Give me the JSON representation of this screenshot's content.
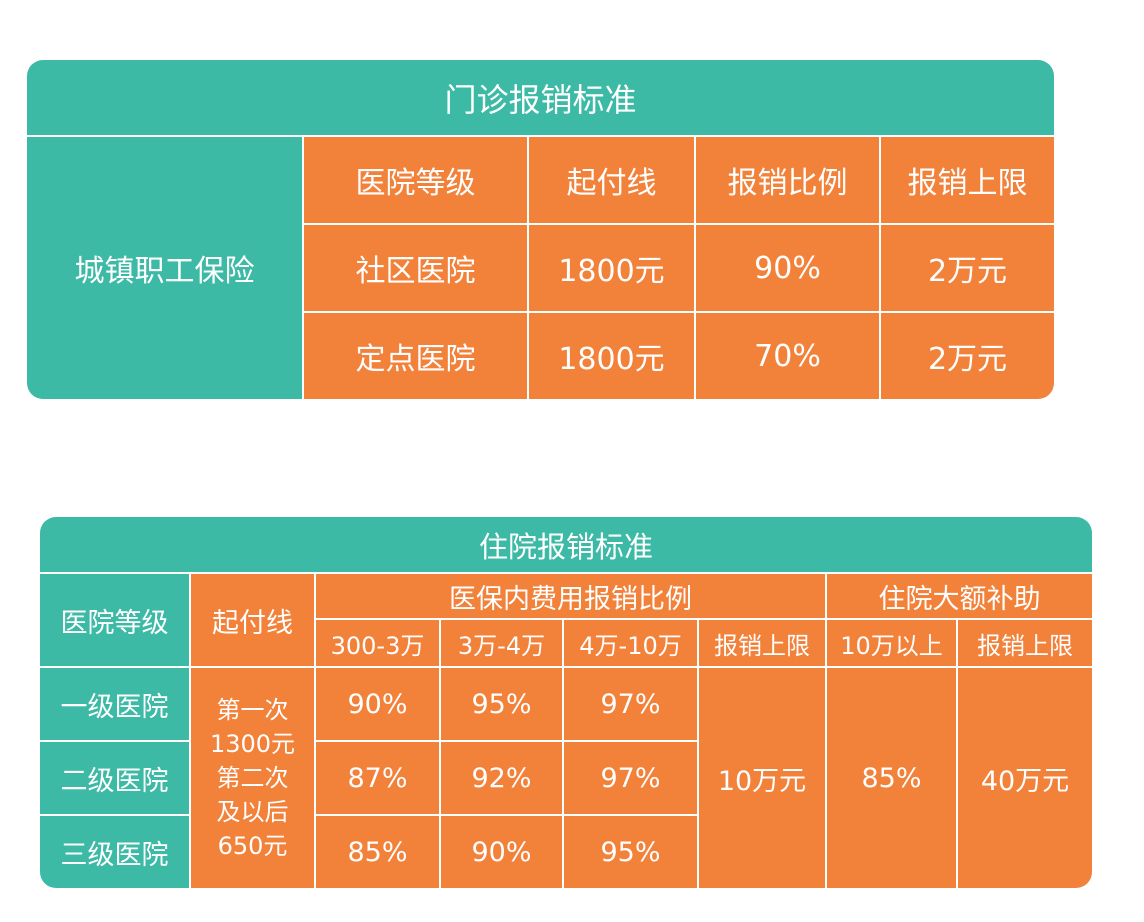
{
  "outpatient": {
    "title": "门诊报销标准",
    "group": "城镇职工保险",
    "headers": [
      "医院等级",
      "起付线",
      "报销比例",
      "报销上限"
    ],
    "rows": [
      [
        "社区医院",
        "1800元",
        "90%",
        "2万元"
      ],
      [
        "定点医院",
        "1800元",
        "70%",
        "2万元"
      ]
    ],
    "colors": {
      "header": "#3dbaa6",
      "body": "#f2813a"
    }
  },
  "inpatient": {
    "title": "住院报销标准",
    "col_level": "医院等级",
    "col_deductible": "起付线",
    "group_ratio": "医保内费用报销比例",
    "group_subsidy": "住院大额补助",
    "sub_headers": [
      "300-3万",
      "3万-4万",
      "4万-10万",
      "报销上限",
      "10万以上",
      "报销上限"
    ],
    "levels": [
      "一级医院",
      "二级医院",
      "三级医院"
    ],
    "deductible_lines": [
      "第一次",
      "1300元",
      "第二次",
      "及以后",
      "650元"
    ],
    "ratios": [
      [
        "90%",
        "95%",
        "97%"
      ],
      [
        "87%",
        "92%",
        "97%"
      ],
      [
        "85%",
        "90%",
        "95%"
      ]
    ],
    "ratio_cap": "10万元",
    "subsidy_ratio": "85%",
    "subsidy_cap": "40万元",
    "colors": {
      "header": "#3dbaa6",
      "body": "#f2813a"
    }
  }
}
